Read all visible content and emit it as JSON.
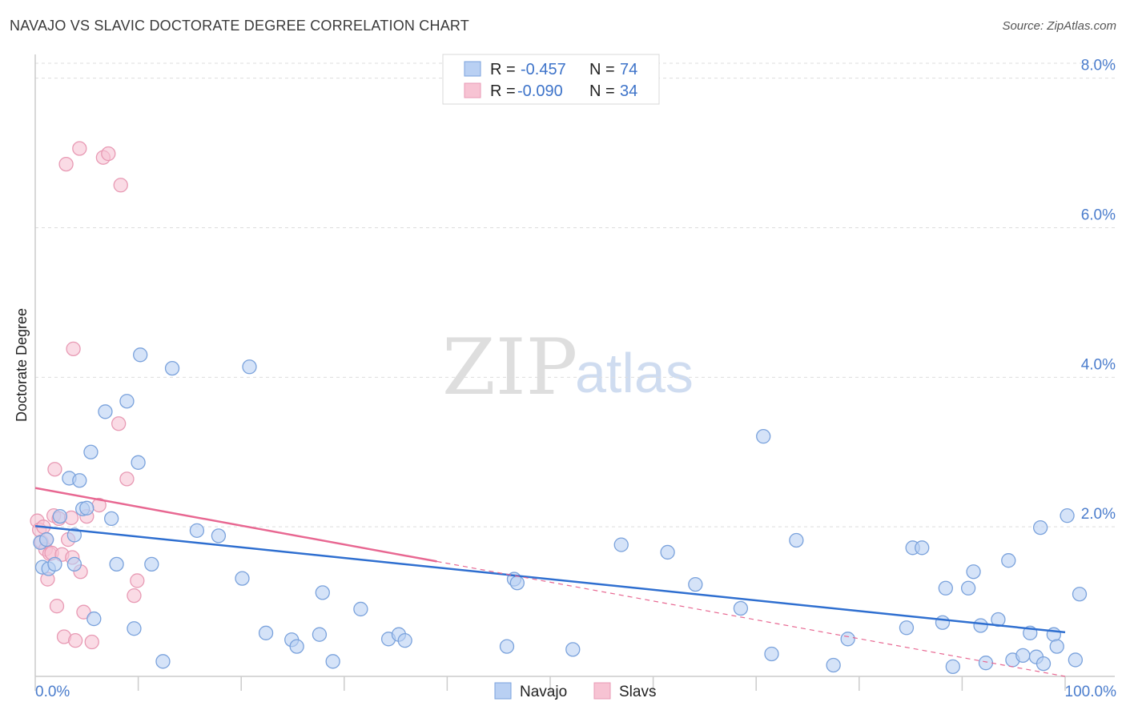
{
  "header": {
    "title": "NAVAJO VS SLAVIC DOCTORATE DEGREE CORRELATION CHART",
    "source": "Source: ZipAtlas.com"
  },
  "watermark": {
    "zip": "ZIP",
    "atlas": "atlas"
  },
  "legend_top": [
    {
      "r_label": "R =",
      "r_value": "-0.457",
      "n_label": "N =",
      "n_value": "74"
    },
    {
      "r_label": "R =",
      "r_value": "-0.090",
      "n_label": "N =",
      "n_value": "34"
    }
  ],
  "legend_bottom": [
    "Navajo",
    "Slavs"
  ],
  "colors": {
    "navajo_fill": "#b9d0f3",
    "navajo_stroke": "#7aa2dc",
    "navajo_line": "#2f6fd0",
    "slavs_fill": "#f7c3d3",
    "slavs_stroke": "#e89ab4",
    "slavs_line": "#e86892",
    "grid": "#dddddd",
    "tick_label": "#4a7ccc"
  },
  "chart_data": {
    "type": "scatter",
    "title": "NAVAJO VS SLAVIC DOCTORATE DEGREE CORRELATION CHART",
    "xlabel": "",
    "ylabel": "Doctorate Degree",
    "xlim": [
      0,
      100
    ],
    "ylim": [
      0,
      8.2
    ],
    "x_ticks": [
      "0.0%",
      "100.0%"
    ],
    "y_ticks": [
      {
        "value": 2.0,
        "label": "2.0%"
      },
      {
        "value": 4.0,
        "label": "4.0%"
      },
      {
        "value": 6.0,
        "label": "6.0%"
      },
      {
        "value": 8.0,
        "label": "8.0%"
      }
    ],
    "grid": true,
    "legend": "top-center",
    "series": [
      {
        "name": "Navajo",
        "r": -0.457,
        "n": 74,
        "trend": {
          "x": [
            0,
            100
          ],
          "y": [
            2.01,
            0.59
          ]
        },
        "points": [
          [
            0.5,
            1.79
          ],
          [
            0.7,
            1.46
          ],
          [
            1.1,
            1.83
          ],
          [
            1.3,
            1.44
          ],
          [
            1.9,
            1.5
          ],
          [
            2.4,
            2.14
          ],
          [
            3.3,
            2.65
          ],
          [
            3.8,
            1.5
          ],
          [
            3.8,
            1.89
          ],
          [
            4.3,
            2.62
          ],
          [
            4.6,
            2.24
          ],
          [
            5.0,
            2.25
          ],
          [
            5.4,
            3.0
          ],
          [
            5.7,
            0.77
          ],
          [
            6.8,
            3.54
          ],
          [
            7.4,
            2.11
          ],
          [
            7.9,
            1.5
          ],
          [
            8.9,
            3.68
          ],
          [
            9.6,
            0.64
          ],
          [
            10.0,
            2.86
          ],
          [
            10.2,
            4.3
          ],
          [
            11.3,
            1.5
          ],
          [
            12.4,
            0.2
          ],
          [
            13.3,
            4.12
          ],
          [
            15.7,
            1.95
          ],
          [
            17.8,
            1.88
          ],
          [
            20.1,
            1.31
          ],
          [
            20.8,
            4.14
          ],
          [
            22.4,
            0.58
          ],
          [
            24.9,
            0.49
          ],
          [
            25.4,
            0.4
          ],
          [
            27.6,
            0.56
          ],
          [
            27.9,
            1.12
          ],
          [
            28.9,
            0.2
          ],
          [
            31.6,
            0.9
          ],
          [
            34.3,
            0.5
          ],
          [
            35.3,
            0.56
          ],
          [
            35.9,
            0.48
          ],
          [
            45.8,
            0.4
          ],
          [
            46.5,
            1.3
          ],
          [
            46.8,
            1.25
          ],
          [
            52.2,
            0.36
          ],
          [
            56.9,
            1.76
          ],
          [
            61.4,
            1.66
          ],
          [
            64.1,
            1.23
          ],
          [
            68.5,
            0.91
          ],
          [
            70.7,
            3.21
          ],
          [
            71.5,
            0.3
          ],
          [
            73.9,
            1.82
          ],
          [
            77.5,
            0.15
          ],
          [
            78.9,
            0.5
          ],
          [
            84.6,
            0.65
          ],
          [
            85.2,
            1.72
          ],
          [
            86.1,
            1.72
          ],
          [
            88.1,
            0.72
          ],
          [
            88.4,
            1.18
          ],
          [
            89.1,
            0.13
          ],
          [
            90.6,
            1.18
          ],
          [
            91.1,
            1.4
          ],
          [
            91.8,
            0.68
          ],
          [
            92.3,
            0.18
          ],
          [
            93.5,
            0.76
          ],
          [
            94.5,
            1.55
          ],
          [
            94.9,
            0.22
          ],
          [
            95.9,
            0.28
          ],
          [
            96.6,
            0.58
          ],
          [
            97.2,
            0.26
          ],
          [
            97.6,
            1.99
          ],
          [
            97.9,
            0.17
          ],
          [
            98.9,
            0.56
          ],
          [
            99.2,
            0.4
          ],
          [
            100.2,
            2.15
          ],
          [
            101.0,
            0.22
          ],
          [
            101.4,
            1.1
          ]
        ]
      },
      {
        "name": "Slavs",
        "r": -0.09,
        "n": 34,
        "trend": {
          "x": [
            0,
            100
          ],
          "y": [
            2.52,
            0.0
          ]
        },
        "points": [
          [
            0.2,
            2.08
          ],
          [
            0.4,
            1.96
          ],
          [
            0.6,
            1.8
          ],
          [
            0.8,
            2.0
          ],
          [
            1.0,
            1.7
          ],
          [
            1.1,
            1.83
          ],
          [
            1.2,
            1.3
          ],
          [
            1.4,
            1.64
          ],
          [
            1.6,
            1.65
          ],
          [
            1.8,
            2.15
          ],
          [
            1.9,
            2.77
          ],
          [
            2.1,
            0.94
          ],
          [
            2.3,
            2.11
          ],
          [
            2.6,
            1.63
          ],
          [
            2.8,
            0.53
          ],
          [
            3.0,
            6.85
          ],
          [
            3.2,
            1.83
          ],
          [
            3.5,
            2.12
          ],
          [
            3.6,
            1.59
          ],
          [
            3.7,
            4.38
          ],
          [
            3.9,
            0.48
          ],
          [
            4.3,
            7.06
          ],
          [
            4.4,
            1.4
          ],
          [
            4.7,
            0.86
          ],
          [
            5.0,
            2.14
          ],
          [
            5.5,
            0.46
          ],
          [
            6.2,
            2.29
          ],
          [
            6.6,
            6.94
          ],
          [
            7.1,
            6.99
          ],
          [
            8.1,
            3.38
          ],
          [
            8.3,
            6.57
          ],
          [
            8.9,
            2.64
          ],
          [
            9.6,
            1.08
          ],
          [
            9.9,
            1.28
          ]
        ]
      }
    ]
  }
}
